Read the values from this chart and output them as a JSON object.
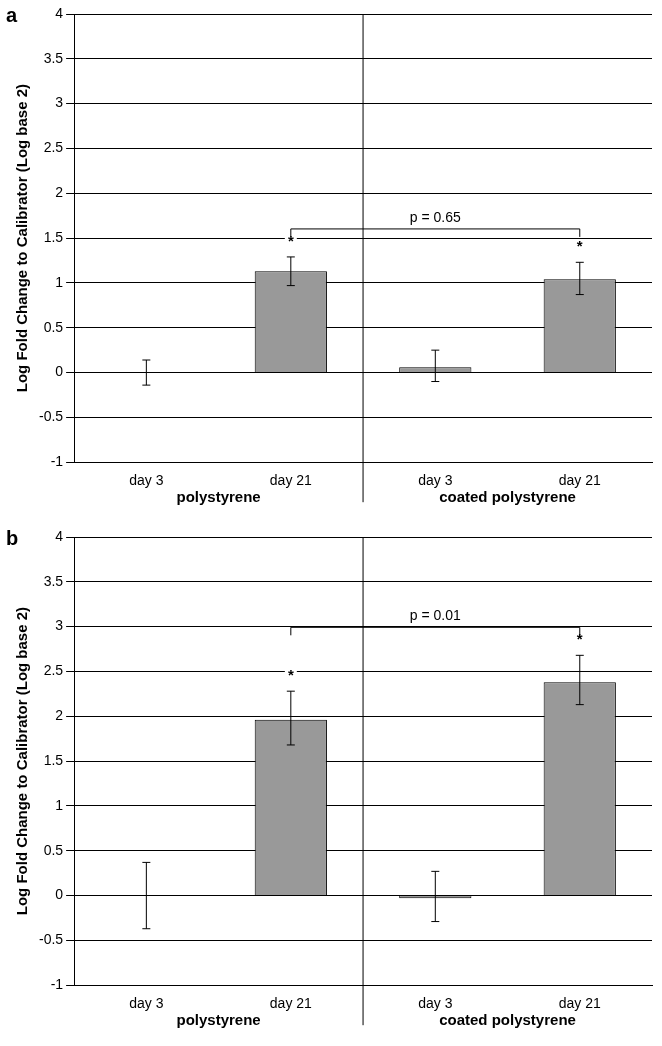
{
  "chart_data": [
    {
      "type": "bar",
      "title": "a",
      "ylabel": "Log Fold Change to Calibrator (Log base 2)",
      "categories": [
        "day 3",
        "day 21",
        "day 3",
        "day 21"
      ],
      "values": [
        0,
        1.13,
        0.06,
        1.04
      ],
      "color": "#999999",
      "errors": [
        [
          -0.14,
          0.14
        ],
        [
          0.97,
          1.29
        ],
        [
          -0.1,
          0.25
        ],
        [
          0.87,
          1.23
        ]
      ],
      "value_labels": [
        null,
        "*",
        null,
        "*"
      ],
      "ylim": [
        -1,
        4
      ],
      "yticks": [
        -1,
        -0.5,
        0,
        0.5,
        1,
        1.5,
        2,
        2.5,
        3,
        3.5,
        4
      ],
      "grid": "y",
      "annotations": [
        "p = 0.65",
        "polystyrene",
        "coated polystyrene"
      ]
    },
    {
      "type": "bar",
      "title": "b",
      "ylabel": "Log Fold Change to Calibrator (Log base 2)",
      "categories": [
        "day 3",
        "day 21",
        "day 3",
        "day 21"
      ],
      "values": [
        0,
        1.96,
        -0.03,
        2.38
      ],
      "color": "#999999",
      "errors": [
        [
          -0.37,
          0.37
        ],
        [
          1.68,
          2.28
        ],
        [
          -0.29,
          0.27
        ],
        [
          2.13,
          2.68
        ]
      ],
      "value_labels": [
        null,
        "*",
        null,
        "*"
      ],
      "ylim": [
        -1,
        4
      ],
      "yticks": [
        -1,
        -0.5,
        0,
        0.5,
        1,
        1.5,
        2,
        2.5,
        3,
        3.5,
        4
      ],
      "grid": "y",
      "annotations": [
        "p = 0.01",
        "polystyrene",
        "coated polystyrene"
      ]
    }
  ]
}
